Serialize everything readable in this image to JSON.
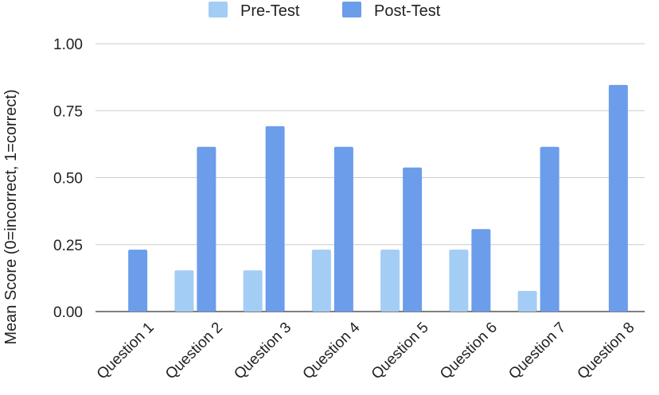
{
  "chart_data": {
    "type": "bar",
    "title": "",
    "xlabel": "",
    "ylabel": "Mean Score (0=incorrect, 1=correct)",
    "ylim": [
      0,
      1
    ],
    "yticks": [
      "0.00",
      "0.25",
      "0.50",
      "0.75",
      "1.00"
    ],
    "grid": true,
    "legend_position": "top",
    "categories": [
      "Question 1",
      "Question 2",
      "Question 3",
      "Question 4",
      "Question 5",
      "Question 6",
      "Question 7",
      "Question 8"
    ],
    "series": [
      {
        "name": "Pre-Test",
        "color": "#a4cdf5",
        "values": [
          0.0,
          0.154,
          0.154,
          0.231,
          0.231,
          0.231,
          0.077,
          0.0
        ]
      },
      {
        "name": "Post-Test",
        "color": "#6b9deb",
        "values": [
          0.231,
          0.615,
          0.692,
          0.615,
          0.538,
          0.308,
          0.615,
          0.846
        ]
      }
    ]
  }
}
